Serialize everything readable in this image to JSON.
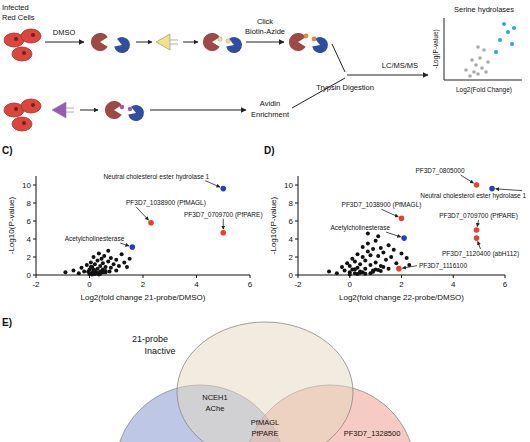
{
  "schematic": {
    "cells_label": [
      "Infected",
      "Red Cells"
    ],
    "treatment": "DMSO",
    "click_step": [
      "Click",
      "Biotin-Azide"
    ],
    "enrich_step": [
      "Avidin",
      "Enrichment"
    ],
    "digest_step": "Trypsin Digestion",
    "ms_step": "LC/MS/MS",
    "result": {
      "title": "Serine hydrolases",
      "y_label": "-Log(P-value)",
      "x_label": "Log2(Fold Change)"
    }
  },
  "chart_data": [
    {
      "panel": "C)",
      "type": "scatter",
      "x_label": "Log2(fold change 21-probe/DMSO)",
      "y_label": "-Log10(P-value)",
      "xlim": [
        -2,
        6
      ],
      "xticks": [
        -2,
        0,
        2,
        4,
        6
      ],
      "ylim": [
        0,
        11
      ],
      "yticks": [
        0,
        2,
        4,
        6,
        8,
        10
      ],
      "series": [
        {
          "color": "#111111",
          "x": [
            -0.9,
            -0.6,
            -0.4,
            -0.3,
            -0.2,
            -0.1,
            0,
            0,
            0.05,
            0.1,
            0.1,
            0.15,
            0.2,
            0.2,
            0.25,
            0.3,
            0.3,
            0.35,
            0.4,
            0.4,
            0.45,
            0.5,
            0.5,
            0.55,
            0.6,
            0.6,
            0.7,
            0.7,
            0.8,
            0.8,
            0.9,
            1.0,
            1.0,
            1.1,
            1.2,
            1.3,
            1.4,
            1.5,
            0.2,
            0.3,
            -0.05,
            0.1,
            0.4,
            0.6,
            0.25,
            0.15,
            0.35,
            0.05,
            0.5,
            0.75
          ],
          "values": [
            0.3,
            0.5,
            0.2,
            0.8,
            0.4,
            1.1,
            0.1,
            0.6,
            1.4,
            0.3,
            0.9,
            2.0,
            0.5,
            1.2,
            0.2,
            0.7,
            1.6,
            2.4,
            0.4,
            1.0,
            1.8,
            0.6,
            1.3,
            2.1,
            0.3,
            0.9,
            1.5,
            2.7,
            0.8,
            1.9,
            1.2,
            0.5,
            1.7,
            1.0,
            2.3,
            1.4,
            0.9,
            1.8,
            0.1,
            0.2,
            0.35,
            0.05,
            0.15,
            0.45,
            0.25,
            0.6,
            0.05,
            0.9,
            0.3,
            0.4
          ]
        },
        {
          "color": "#e8402a",
          "x": [
            2.3,
            5.0
          ],
          "values": [
            5.8,
            4.7
          ]
        },
        {
          "color": "#2340c0",
          "x": [
            5.0,
            1.6
          ],
          "values": [
            9.6,
            3.1
          ]
        }
      ],
      "annotations": [
        {
          "text": "Neutral cholesterol ester hydrolase 1",
          "x": 5.0,
          "y": 9.6
        },
        {
          "text": "PF3D7_1038900 (PfMAGL)",
          "x": 2.3,
          "y": 5.8
        },
        {
          "text": "PF3D7_0709700 (PfPARE)",
          "x": 5.0,
          "y": 4.7
        },
        {
          "text": "Acetylcholinesterase",
          "x": 1.6,
          "y": 3.1
        }
      ]
    },
    {
      "panel": "D)",
      "type": "scatter",
      "x_label": "Log2(fold change 22-probe/DMSO)",
      "y_label": "-Log10(P-value)",
      "xlim": [
        -2,
        6
      ],
      "xticks": [
        -2,
        0,
        2,
        4,
        6
      ],
      "ylim": [
        0,
        11
      ],
      "yticks": [
        0,
        2,
        4,
        6,
        8,
        10
      ],
      "series": [
        {
          "color": "#111111",
          "x": [
            -0.8,
            -0.5,
            -0.3,
            -0.2,
            -0.1,
            0,
            0,
            0.1,
            0.1,
            0.2,
            0.2,
            0.3,
            0.3,
            0.4,
            0.4,
            0.5,
            0.5,
            0.6,
            0.6,
            0.7,
            0.7,
            0.8,
            0.8,
            0.9,
            0.9,
            1.0,
            1.0,
            1.1,
            1.1,
            1.2,
            1.2,
            1.3,
            1.4,
            1.5,
            1.6,
            1.7,
            1.8,
            2.0,
            2.2,
            0.3,
            0.5,
            0.8,
            1.0,
            1.3,
            0.0,
            0.6,
            1.5,
            0.9,
            1.2,
            0.4,
            1.9,
            2.3,
            0.7,
            1.1,
            0.2
          ],
          "values": [
            0.4,
            0.2,
            0.9,
            0.5,
            1.3,
            0.3,
            1.0,
            0.6,
            1.8,
            0.2,
            1.5,
            0.8,
            2.3,
            0.4,
            1.2,
            2.0,
            3.1,
            0.7,
            1.6,
            2.6,
            3.5,
            1.1,
            2.2,
            0.5,
            2.9,
            1.4,
            3.8,
            2.1,
            4.3,
            1.0,
            3.0,
            2.5,
            1.7,
            3.3,
            2.0,
            2.8,
            1.3,
            2.4,
            1.9,
            0.1,
            0.3,
            0.2,
            0.6,
            0.9,
            0.05,
            0.15,
            0.7,
            0.35,
            0.45,
            0.25,
            0.8,
            1.1,
            4.6,
            0.55,
            0.65
          ]
        },
        {
          "color": "#e8402a",
          "x": [
            4.9,
            2.0,
            4.9,
            4.9,
            1.9
          ],
          "values": [
            10.0,
            6.3,
            5.0,
            4.1,
            0.7
          ]
        },
        {
          "color": "#2340c0",
          "x": [
            5.5,
            2.1
          ],
          "values": [
            9.6,
            4.1
          ]
        }
      ],
      "annotations": [
        {
          "text": "PF3D7_0805000",
          "x": 4.9,
          "y": 10.0
        },
        {
          "text": "Neutral cholesterol ester hydrolase 1",
          "x": 5.5,
          "y": 9.6
        },
        {
          "text": "PF3D7_1038900 (PfMAGL)",
          "x": 2.0,
          "y": 6.3
        },
        {
          "text": "Acetylcholinesterase",
          "x": 2.1,
          "y": 4.1
        },
        {
          "text": "PF3D7_0709700 (PfPARE)",
          "x": 4.9,
          "y": 5.0
        },
        {
          "text": "PF3D7_1120400 (abH112)",
          "x": 4.9,
          "y": 4.1
        },
        {
          "text": "PF3D7_1116100",
          "x": 1.9,
          "y": 0.7
        }
      ]
    }
  ],
  "venn": {
    "panel": "E)",
    "top_set_label": [
      "21-probe",
      "Inactive"
    ],
    "regions": {
      "top_left": [
        "NCEH1",
        "AChe"
      ],
      "center": [
        "PfMAGL",
        "PfPARE"
      ],
      "right": [
        "PF3D7_1328500"
      ]
    }
  }
}
